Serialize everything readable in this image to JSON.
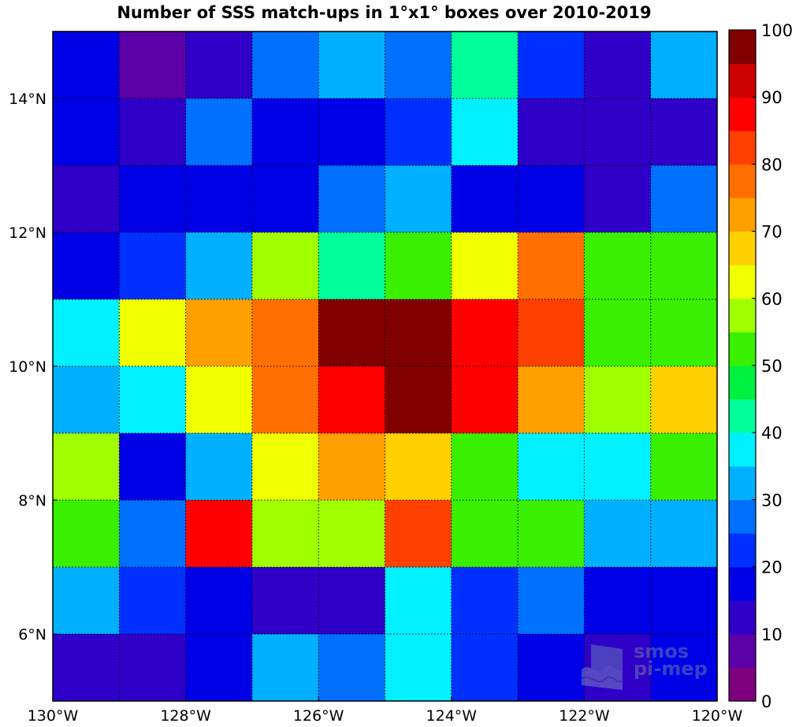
{
  "chart_data": {
    "type": "heatmap",
    "title": "Number of SSS match-ups in 1°x1° boxes over 2010-2019",
    "x_edges": [
      -130,
      -129,
      -128,
      -127,
      -126,
      -125,
      -124,
      -123,
      -122,
      -121,
      -120
    ],
    "y_edges": [
      5,
      6,
      7,
      8,
      9,
      10,
      11,
      12,
      13,
      14,
      15
    ],
    "xlim": [
      -130,
      -120
    ],
    "ylim": [
      5,
      15
    ],
    "x_ticks": [
      -130,
      -128,
      -126,
      -124,
      -122,
      -120
    ],
    "x_tick_labels": [
      "130°W",
      "128°W",
      "126°W",
      "124°W",
      "122°W",
      "120°W"
    ],
    "y_ticks": [
      6,
      8,
      10,
      12,
      14
    ],
    "y_tick_labels": [
      "6°N",
      "8°N",
      "10°N",
      "12°N",
      "14°N"
    ],
    "grid": "dotted",
    "colorbar": {
      "min": 0,
      "max": 100,
      "levels": 20,
      "ticks": [
        0,
        10,
        20,
        30,
        40,
        50,
        60,
        70,
        80,
        90,
        100
      ],
      "tick_labels": [
        "0",
        "10",
        "20",
        "30",
        "40",
        "50",
        "60",
        "70",
        "80",
        "90",
        "100"
      ],
      "colors": [
        "#7f007f",
        "#5c00a8",
        "#2e00c8",
        "#0000e6",
        "#0030ff",
        "#0070ff",
        "#00b0ff",
        "#00f0ff",
        "#00ff9a",
        "#00f040",
        "#38f000",
        "#a0ff00",
        "#f0ff00",
        "#ffd000",
        "#ffa000",
        "#ff7000",
        "#ff4000",
        "#ff0000",
        "#cc0000",
        "#800000"
      ]
    },
    "values": [
      [
        15,
        5,
        12,
        28,
        32,
        28,
        42,
        22,
        12,
        32
      ],
      [
        17,
        12,
        28,
        17,
        18,
        22,
        37,
        12,
        10,
        12
      ],
      [
        10,
        18,
        18,
        18,
        28,
        32,
        18,
        18,
        10,
        25
      ],
      [
        18,
        22,
        32,
        58,
        42,
        52,
        62,
        78,
        52,
        52
      ],
      [
        37,
        62,
        72,
        78,
        98,
        98,
        88,
        82,
        52,
        52
      ],
      [
        32,
        37,
        62,
        78,
        88,
        98,
        88,
        72,
        57,
        68
      ],
      [
        57,
        17,
        32,
        62,
        72,
        68,
        52,
        37,
        37,
        52
      ],
      [
        52,
        28,
        88,
        57,
        57,
        82,
        52,
        52,
        32,
        32
      ],
      [
        32,
        22,
        17,
        12,
        12,
        37,
        22,
        28,
        17,
        17
      ],
      [
        12,
        12,
        17,
        32,
        28,
        37,
        22,
        17,
        12,
        17
      ]
    ],
    "watermark_text": [
      "smos",
      "pi-mep"
    ]
  }
}
